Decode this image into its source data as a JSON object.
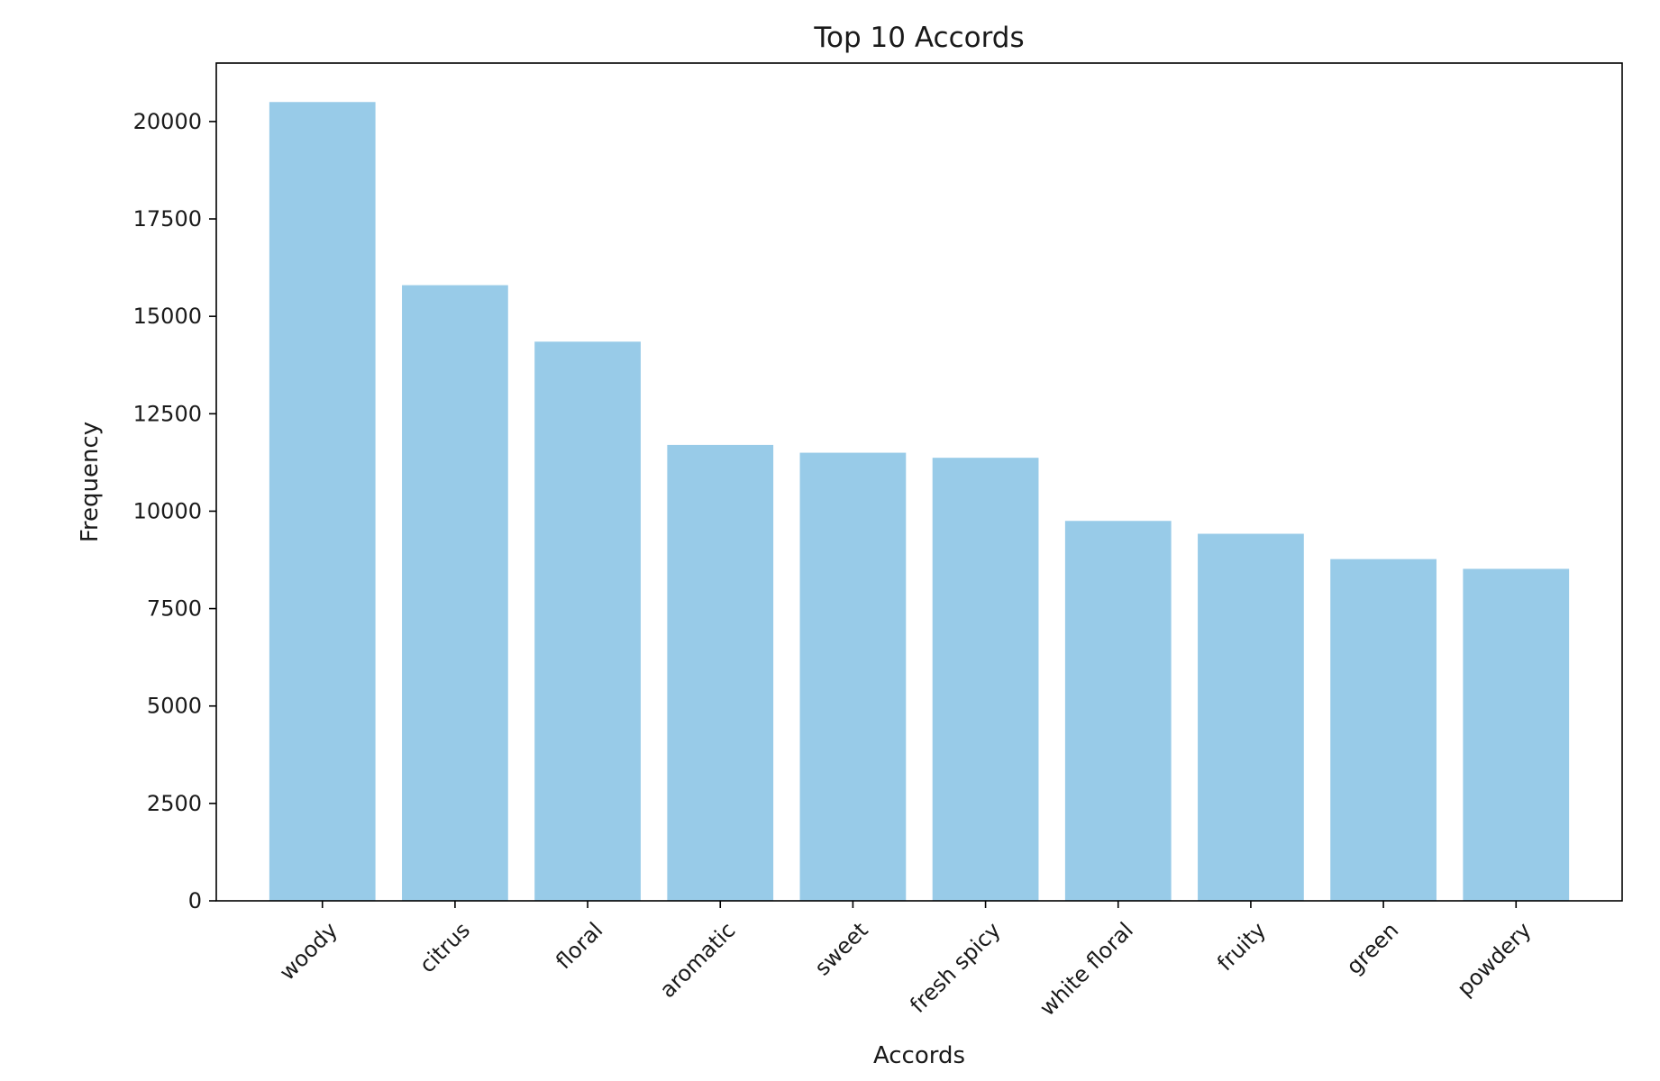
{
  "chart_data": {
    "type": "bar",
    "title": "Top 10 Accords",
    "xlabel": "Accords",
    "ylabel": "Frequency",
    "categories": [
      "woody",
      "citrus",
      "floral",
      "aromatic",
      "sweet",
      "fresh spicy",
      "white floral",
      "fruity",
      "green",
      "powdery"
    ],
    "values": [
      20500,
      15800,
      14350,
      11700,
      11500,
      11370,
      9750,
      9420,
      8770,
      8520
    ],
    "yticks": [
      0,
      2500,
      5000,
      7500,
      10000,
      12500,
      15000,
      17500,
      20000
    ],
    "ylim": [
      0,
      21500
    ],
    "bar_color": "#98cbe8",
    "grid": false,
    "xtick_rotation_deg": 45
  }
}
